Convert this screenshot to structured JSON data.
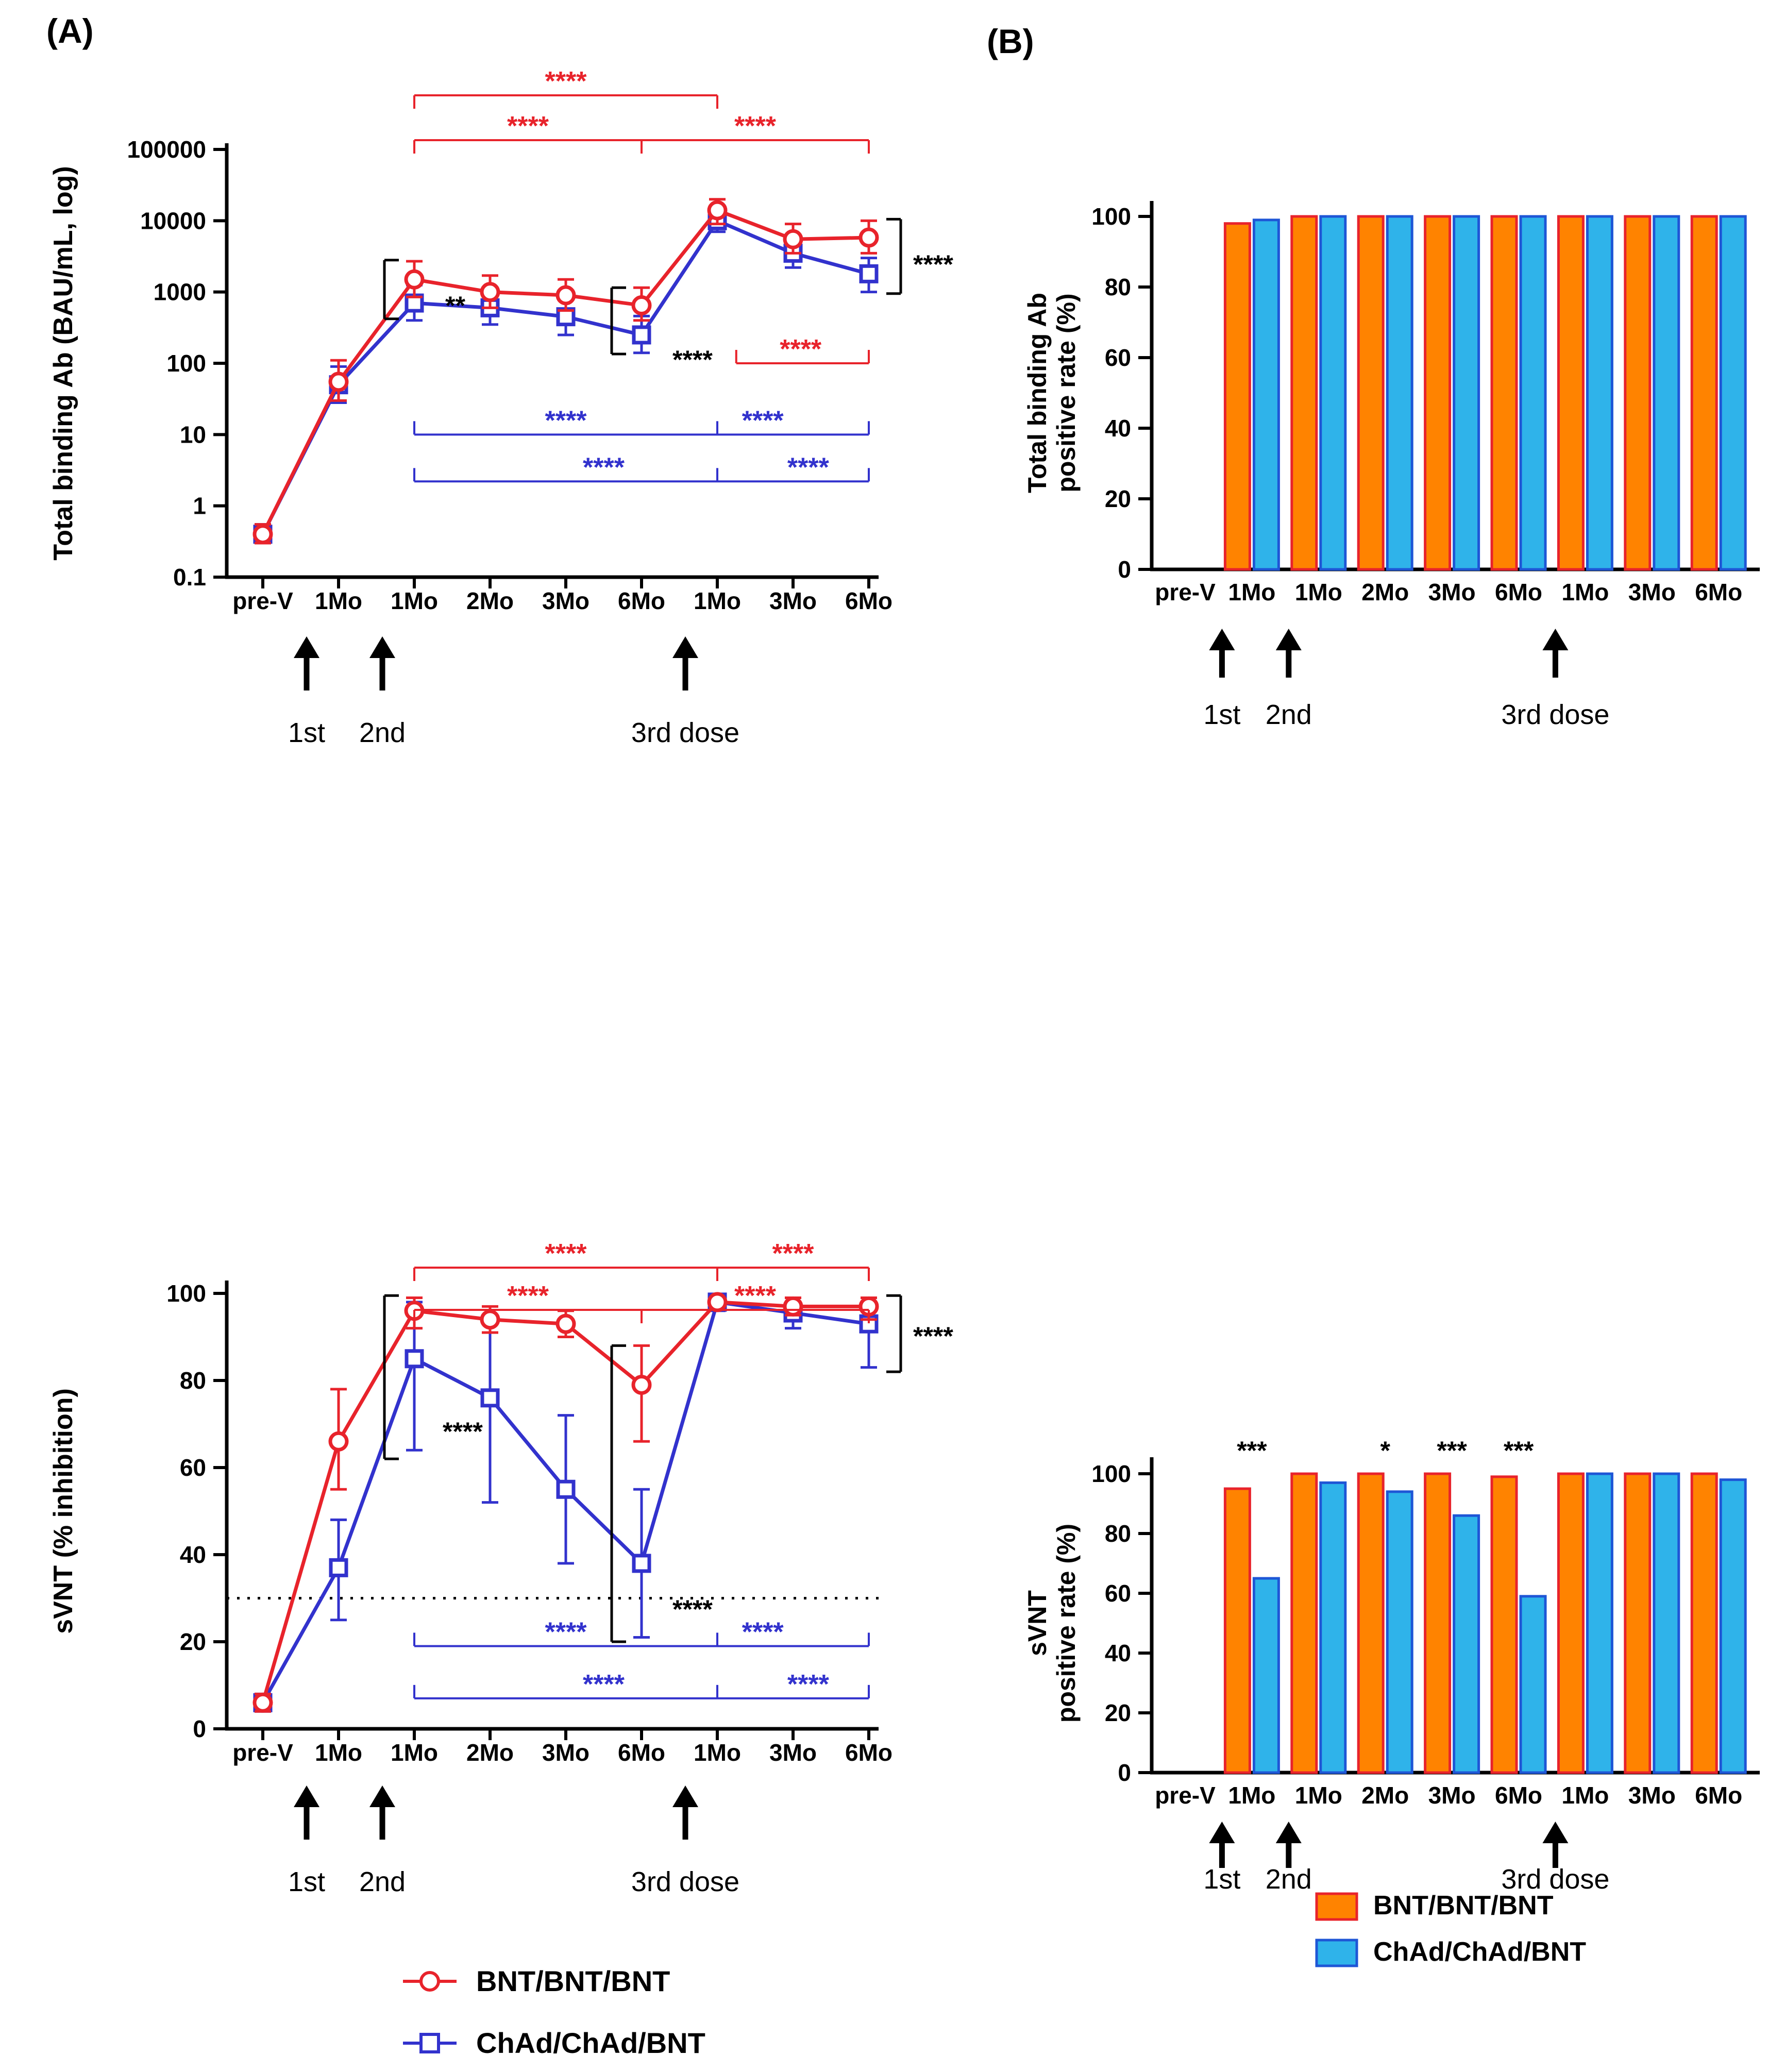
{
  "panels": {
    "a_label": "(A)",
    "b_label": "(B)"
  },
  "categories": [
    "pre-V",
    "1Mo",
    "1Mo",
    "2Mo",
    "3Mo",
    "6Mo",
    "1Mo",
    "3Mo",
    "6Mo"
  ],
  "dose_arrows": {
    "items": [
      {
        "index": 1,
        "label": "1st"
      },
      {
        "index": 2,
        "label": "2nd"
      },
      {
        "index": 6,
        "label": "3rd dose"
      }
    ]
  },
  "legend_lines": [
    {
      "name": "BNT/BNT/BNT",
      "color": "#E8232B",
      "marker": "circle"
    },
    {
      "name": "ChAd/ChAd/BNT",
      "color": "#3232CD",
      "marker": "square"
    }
  ],
  "legend_bars": [
    {
      "name": "BNT/BNT/BNT",
      "fill": "#FF8300",
      "stroke": "#E8232B"
    },
    {
      "name": "ChAd/ChAd/BNT",
      "fill": "#2FB3EA",
      "stroke": "#1E56D6"
    }
  ],
  "chart_data": [
    {
      "id": "total_binding_ab",
      "type": "line",
      "yscale": "log",
      "ylabel": "Total binding Ab (BAU/mL, log)",
      "ylim": [
        0.1,
        100000
      ],
      "yticks": [
        "100000",
        "10000",
        "1000",
        "100",
        "10",
        "1",
        "0.1"
      ],
      "cutoff": null,
      "series": [
        {
          "name": "BNT/BNT/BNT",
          "color": "#E8232B",
          "marker": "circle",
          "values": [
            0.4,
            55,
            1500,
            1000,
            900,
            650,
            14000,
            5500,
            5800
          ],
          "err_lo": [
            0.3,
            30,
            850,
            600,
            550,
            400,
            9000,
            3500,
            3500
          ],
          "err_hi": [
            0.55,
            110,
            2700,
            1700,
            1500,
            1150,
            20000,
            9000,
            10000
          ]
        },
        {
          "name": "ChAd/ChAd/BNT",
          "color": "#3232CD",
          "marker": "square",
          "values": [
            0.4,
            50,
            700,
            600,
            450,
            250,
            10000,
            3500,
            1800
          ],
          "err_lo": [
            0.3,
            28,
            400,
            350,
            250,
            140,
            7000,
            2200,
            1000
          ],
          "err_hi": [
            0.55,
            90,
            1250,
            1050,
            800,
            460,
            14000,
            5600,
            3000
          ]
        }
      ],
      "significance": [
        {
          "kind": "bracket",
          "color": "#E8232B",
          "row_y": 175,
          "x1": 2,
          "x2": 6,
          "tick": "down",
          "stars": [
            {
              "x": 4,
              "text": "****"
            }
          ]
        },
        {
          "kind": "bracket",
          "color": "#E8232B",
          "row_y": 262,
          "x1": 2,
          "x2": 8,
          "mid": 5,
          "tick": "down",
          "stars": [
            {
              "x": 3.5,
              "text": "****"
            },
            {
              "x": 6.5,
              "text": "****"
            }
          ]
        },
        {
          "kind": "bracket_val",
          "color": "#3232CD",
          "y_value": 10,
          "x1": 2,
          "x2": 8,
          "mid": 6,
          "tick": "up",
          "stars": [
            {
              "x": 4,
              "text": "****"
            },
            {
              "x": 6.6,
              "text": "****"
            }
          ]
        },
        {
          "kind": "bracket_val",
          "color": "#3232CD",
          "y_value": 2.2,
          "x1": 2,
          "x2": 8,
          "mid": 6,
          "tick": "up",
          "stars": [
            {
              "x": 4.5,
              "text": "****"
            },
            {
              "x": 7.2,
              "text": "****"
            }
          ]
        },
        {
          "kind": "bracket_val",
          "color": "#E8232B",
          "y_value": 100,
          "x1": 6.25,
          "x2": 8,
          "tick": "up",
          "stars": [
            {
              "x": 7.1,
              "text": "****"
            }
          ]
        },
        {
          "kind": "vbracket",
          "x": 2,
          "side": "left",
          "v_top": 2800,
          "v_bot": 420,
          "text": "**",
          "label_dx": 60,
          "label_y": 600
        },
        {
          "kind": "vbracket",
          "x": 5,
          "side": "left",
          "v_top": 1150,
          "v_bot": 135,
          "text": "****",
          "label_dx": 60,
          "label_y": 705
        },
        {
          "kind": "vbracket",
          "x": 8,
          "side": "right",
          "v_top": 10500,
          "v_bot": 950,
          "text": "****",
          "label_dx": 24,
          "label_y": 520
        }
      ]
    },
    {
      "id": "total_binding_ab_rate",
      "type": "bar",
      "ylabel_lines": [
        "Total binding Ab",
        "positive rate (%)"
      ],
      "ylim": [
        0,
        100
      ],
      "yticks": [
        0,
        20,
        40,
        60,
        80,
        100
      ],
      "series": [
        {
          "name": "BNT/BNT/BNT",
          "values": [
            0,
            98,
            100,
            100,
            100,
            100,
            100,
            100,
            100
          ]
        },
        {
          "name": "ChAd/ChAd/BNT",
          "values": [
            0,
            99,
            100,
            100,
            100,
            100,
            100,
            100,
            100
          ]
        }
      ],
      "stars": []
    },
    {
      "id": "svnt",
      "type": "line",
      "yscale": "linear",
      "ylabel": "sVNT (% inhibition)",
      "ylim": [
        0,
        100
      ],
      "yticks": [
        "0",
        "20",
        "40",
        "60",
        "80",
        "100"
      ],
      "cutoff": 30,
      "series": [
        {
          "name": "BNT/BNT/BNT",
          "color": "#E8232B",
          "marker": "circle",
          "values": [
            6,
            66,
            96,
            94,
            93,
            79,
            98,
            97,
            97
          ],
          "err_lo": [
            4,
            55,
            92,
            91,
            90,
            66,
            97,
            95,
            94
          ],
          "err_hi": [
            8,
            78,
            99,
            97,
            96,
            88,
            99,
            99,
            99
          ]
        },
        {
          "name": "ChAd/ChAd/BNT",
          "color": "#3232CD",
          "marker": "square",
          "values": [
            6,
            37,
            85,
            76,
            55,
            38,
            98,
            95.5,
            93
          ],
          "err_lo": [
            4,
            25,
            64,
            52,
            38,
            21,
            96,
            92,
            83
          ],
          "err_hi": [
            8,
            48,
            98,
            93,
            72,
            55,
            99,
            98,
            98
          ]
        }
      ],
      "significance": [
        {
          "kind": "bracket",
          "color": "#E8232B",
          "row_y": 320,
          "x1": 2,
          "x2": 8,
          "mid": 6,
          "tick": "down",
          "stars": [
            {
              "x": 4,
              "text": "****"
            },
            {
              "x": 7,
              "text": "****"
            }
          ]
        },
        {
          "kind": "bracket",
          "color": "#E8232B",
          "row_y": 402,
          "x1": 2,
          "x2": 8,
          "mid": 5,
          "tick": "down",
          "stars": [
            {
              "x": 3.5,
              "text": "****"
            },
            {
              "x": 6.5,
              "text": "****"
            }
          ]
        },
        {
          "kind": "bracket_val",
          "color": "#3232CD",
          "y_value": 19,
          "x1": 2,
          "x2": 8,
          "mid": 6,
          "tick": "up",
          "stars": [
            {
              "x": 4,
              "text": "****"
            },
            {
              "x": 6.6,
              "text": "****"
            }
          ]
        },
        {
          "kind": "bracket_val",
          "color": "#3232CD",
          "y_value": 7,
          "x1": 2,
          "x2": 8,
          "mid": 6,
          "tick": "up",
          "stars": [
            {
              "x": 4.5,
              "text": "****"
            },
            {
              "x": 7.2,
              "text": "****"
            }
          ]
        },
        {
          "kind": "vbracket",
          "x": 2,
          "side": "left",
          "v_top": 99.5,
          "v_bot": 62,
          "text": "****",
          "label_dx": 55,
          "label_y": 655
        },
        {
          "kind": "vbracket",
          "x": 5,
          "side": "left",
          "v_top": 88,
          "v_bot": 20,
          "text": "****",
          "label_dx": 60,
          "label_y": 1000
        },
        {
          "kind": "vbracket",
          "x": 8,
          "side": "right",
          "v_top": 99.5,
          "v_bot": 82,
          "text": "****",
          "label_dx": 24,
          "label_y": 470
        }
      ]
    },
    {
      "id": "svnt_rate",
      "type": "bar",
      "ylabel_lines": [
        "sVNT",
        "positive rate (%)"
      ],
      "ylim": [
        0,
        100
      ],
      "yticks": [
        0,
        20,
        40,
        60,
        80,
        100
      ],
      "series": [
        {
          "name": "BNT/BNT/BNT",
          "values": [
            0,
            95,
            100,
            100,
            100,
            99,
            100,
            100,
            100
          ]
        },
        {
          "name": "ChAd/ChAd/BNT",
          "values": [
            0,
            65,
            97,
            94,
            86,
            59,
            100,
            100,
            98
          ]
        }
      ],
      "stars": [
        {
          "index": 1,
          "text": "***"
        },
        {
          "index": 3,
          "text": "*"
        },
        {
          "index": 4,
          "text": "***"
        },
        {
          "index": 5,
          "text": "***"
        }
      ]
    }
  ]
}
